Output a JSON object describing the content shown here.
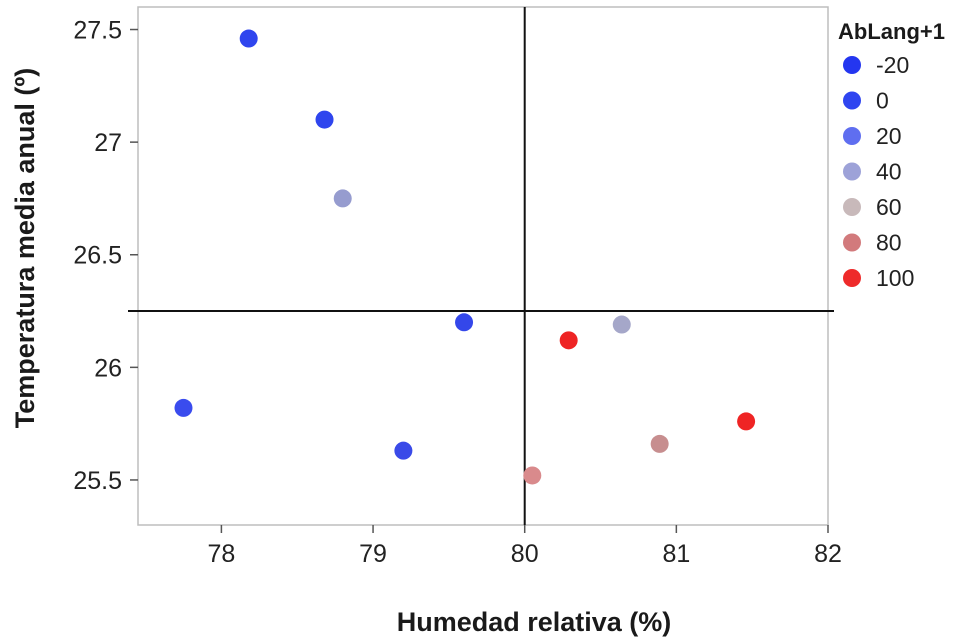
{
  "chart_data": {
    "type": "scatter",
    "title": "",
    "xlabel": "Humedad relativa (%)",
    "ylabel": "Temperatura media anual (º)",
    "xlim": [
      77.45,
      82
    ],
    "ylim": [
      25.3,
      27.6
    ],
    "x_ticks": [
      "78",
      "79",
      "80",
      "81",
      "82"
    ],
    "y_ticks": [
      "25.5",
      "26",
      "26.5",
      "27",
      "27.5"
    ],
    "grid": false,
    "reference_lines": {
      "x": 80,
      "y": 26.25
    },
    "legend": {
      "title": "AbLang+1",
      "placement": "right",
      "entries": [
        {
          "label": "-20",
          "color": "#2436f0"
        },
        {
          "label": "0",
          "color": "#2f45f0"
        },
        {
          "label": "20",
          "color": "#5f6ef0"
        },
        {
          "label": "40",
          "color": "#9da2d8"
        },
        {
          "label": "60",
          "color": "#c8b9ba"
        },
        {
          "label": "80",
          "color": "#d27a7c"
        },
        {
          "label": "100",
          "color": "#ee2a2a"
        }
      ]
    },
    "points": [
      {
        "x": 78.18,
        "y": 27.46,
        "value": -20,
        "color": "#2f45ee"
      },
      {
        "x": 78.68,
        "y": 27.1,
        "value": -20,
        "color": "#2f45ee"
      },
      {
        "x": 78.8,
        "y": 26.75,
        "value": 40,
        "color": "#969ccf"
      },
      {
        "x": 79.6,
        "y": 26.2,
        "value": 0,
        "color": "#3447ea"
      },
      {
        "x": 77.75,
        "y": 25.82,
        "value": 0,
        "color": "#3a4cee"
      },
      {
        "x": 79.2,
        "y": 25.63,
        "value": 0,
        "color": "#3a4ae8"
      },
      {
        "x": 80.05,
        "y": 25.52,
        "value": 80,
        "color": "#d98a8c"
      },
      {
        "x": 80.29,
        "y": 26.12,
        "value": 100,
        "color": "#ee2424"
      },
      {
        "x": 80.64,
        "y": 26.19,
        "value": 40,
        "color": "#a5a7c9"
      },
      {
        "x": 80.89,
        "y": 25.66,
        "value": 60,
        "color": "#c78e8f"
      },
      {
        "x": 81.46,
        "y": 25.76,
        "value": 100,
        "color": "#ef2424"
      }
    ]
  }
}
